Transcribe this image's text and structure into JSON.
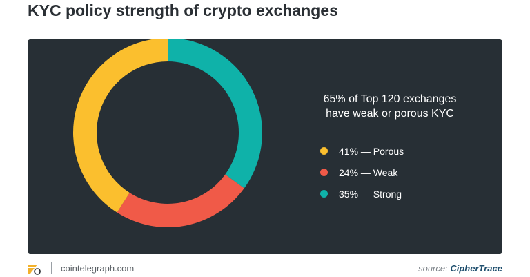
{
  "title": "KYC policy strength of crypto exchanges",
  "headline": {
    "line1": "65% of Top 120 exchanges",
    "line2": "have weak or porous KYC"
  },
  "legend": [
    {
      "label": "41% — Porous",
      "color": "#fbbf2e"
    },
    {
      "label": "24% — Weak",
      "color": "#f05a48"
    },
    {
      "label": "35% — Strong",
      "color": "#0fb2a9"
    }
  ],
  "footer": {
    "site": "cointelegraph.com",
    "source_prefix": "source:",
    "source_name": "CipherTrace",
    "logo_icon": "cointelegraph-logo-icon"
  },
  "colors": {
    "panel": "#272f35",
    "porous": "#fbbf2e",
    "weak": "#f05a48",
    "strong": "#0fb2a9"
  },
  "chart_data": {
    "type": "pie",
    "variant": "donut",
    "title": "KYC policy strength of crypto exchanges",
    "start": "top, clockwise",
    "categories": [
      "Strong",
      "Weak",
      "Porous"
    ],
    "values": [
      35,
      24,
      41
    ],
    "unit": "%",
    "colors": [
      "#0fb2a9",
      "#f05a48",
      "#fbbf2e"
    ],
    "legend_position": "right"
  }
}
